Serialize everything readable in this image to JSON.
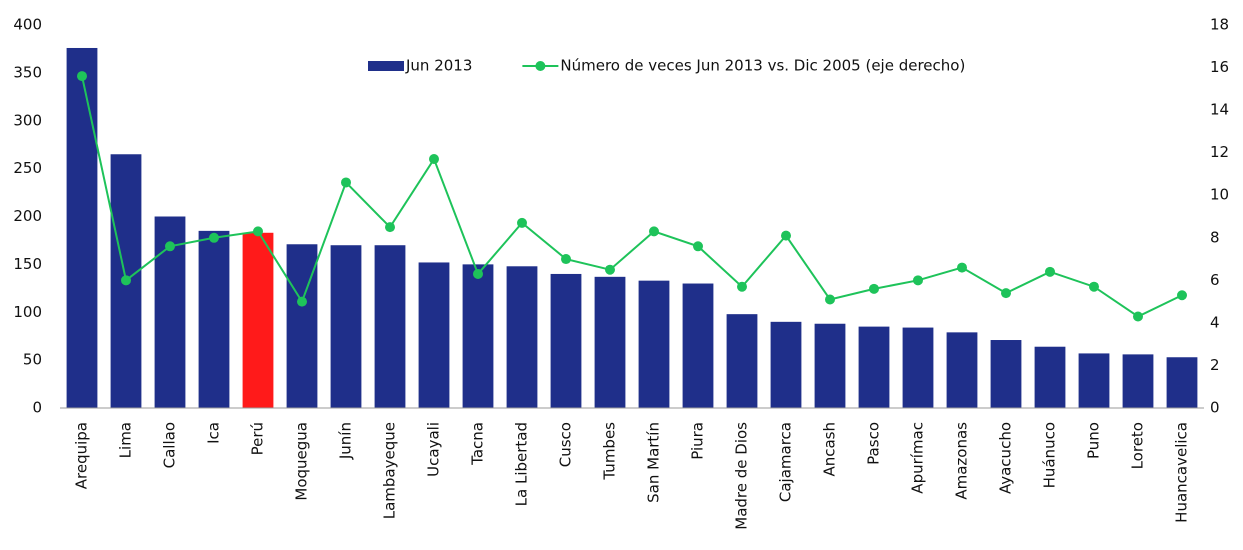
{
  "chart_data": {
    "type": "bar",
    "categories": [
      "Arequipa",
      "Lima",
      "Callao",
      "Ica",
      "Perú",
      "Moquegua",
      "Junín",
      "Lambayeque",
      "Ucayali",
      "Tacna",
      "La Libertad",
      "Cusco",
      "Tumbes",
      "San Martín",
      "Piura",
      "Madre de Dios",
      "Cajamarca",
      "Ancash",
      "Pasco",
      "Apurímac",
      "Amazonas",
      "Ayacucho",
      "Huánuco",
      "Puno",
      "Loreto",
      "Huancavelica"
    ],
    "series": [
      {
        "name": "Jun 2013",
        "type": "bar",
        "color": "#1f2f8a",
        "colors": [
          "#1f2f8a",
          "#1f2f8a",
          "#1f2f8a",
          "#1f2f8a",
          "#ff1a1a",
          "#1f2f8a",
          "#1f2f8a",
          "#1f2f8a",
          "#1f2f8a",
          "#1f2f8a",
          "#1f2f8a",
          "#1f2f8a",
          "#1f2f8a",
          "#1f2f8a",
          "#1f2f8a",
          "#1f2f8a",
          "#1f2f8a",
          "#1f2f8a",
          "#1f2f8a",
          "#1f2f8a",
          "#1f2f8a",
          "#1f2f8a",
          "#1f2f8a",
          "#1f2f8a",
          "#1f2f8a",
          "#1f2f8a"
        ],
        "values": [
          376,
          265,
          200,
          185,
          183,
          171,
          170,
          170,
          152,
          150,
          148,
          140,
          137,
          133,
          130,
          98,
          90,
          88,
          85,
          84,
          79,
          71,
          64,
          57,
          56,
          53
        ]
      },
      {
        "name": "Número de veces Jun 2013 vs. Dic 2005 (eje derecho)",
        "type": "line",
        "axis": "y2",
        "color": "#1ec35a",
        "values": [
          15.6,
          6.0,
          7.6,
          8.0,
          8.3,
          5.0,
          10.6,
          8.5,
          11.7,
          6.3,
          8.7,
          7.0,
          6.5,
          8.3,
          7.6,
          5.7,
          8.1,
          5.1,
          5.6,
          6.0,
          6.6,
          5.4,
          6.4,
          5.7,
          4.3,
          5.3
        ]
      }
    ],
    "ylim": [
      0,
      400
    ],
    "yticks": [
      0,
      50,
      100,
      150,
      200,
      250,
      300,
      350,
      400
    ],
    "y2lim": [
      0,
      18
    ],
    "y2ticks": [
      0,
      2,
      4,
      6,
      8,
      10,
      12,
      14,
      16,
      18
    ],
    "grid": false,
    "legend": "top"
  }
}
